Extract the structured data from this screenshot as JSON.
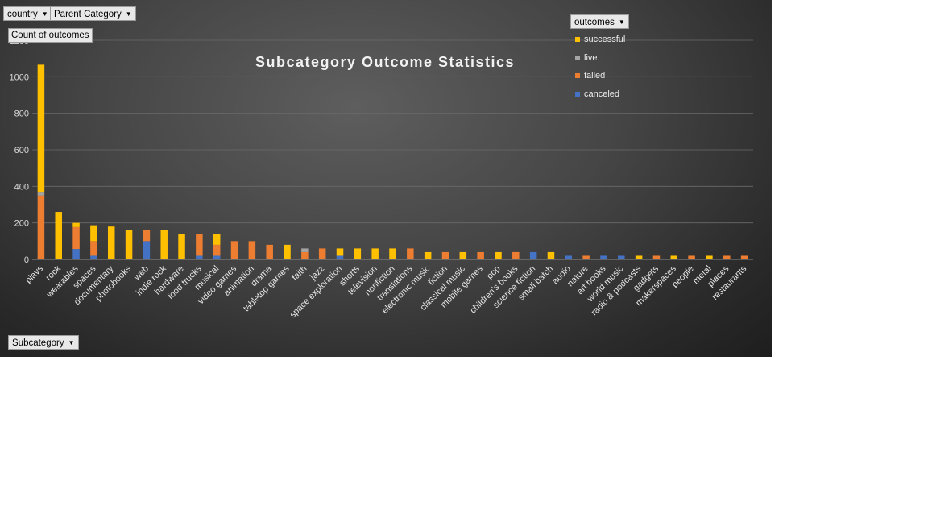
{
  "filters": {
    "country": "country",
    "parent_category": "Parent Category",
    "value_field": "Count of outcomes",
    "outcomes": "outcomes",
    "subcategory": "Subcategory"
  },
  "colors": {
    "successful": "#ffc000",
    "live": "#a5a5a5",
    "failed": "#ed7d31",
    "canceled": "#4472c4"
  },
  "chart_data": {
    "type": "bar",
    "stacked": true,
    "title": "Subcategory Outcome Statistics",
    "xlabel": "",
    "ylabel": "",
    "ylim": [
      0,
      1200
    ],
    "yticks": [
      0,
      200,
      400,
      600,
      800,
      1000,
      1200
    ],
    "grid": true,
    "legend_position": "top-right",
    "categories": [
      "plays",
      "rock",
      "wearables",
      "spaces",
      "documentary",
      "photobooks",
      "web",
      "indie rock",
      "hardware",
      "food trucks",
      "musical",
      "video games",
      "animation",
      "drama",
      "tabletop games",
      "faith",
      "jazz",
      "space exploration",
      "shorts",
      "television",
      "nonfiction",
      "translations",
      "electronic music",
      "fiction",
      "classical music",
      "mobile games",
      "pop",
      "children's books",
      "science fiction",
      "small batch",
      "audio",
      "nature",
      "art books",
      "world music",
      "radio & podcasts",
      "gadgets",
      "makerspaces",
      "people",
      "metal",
      "places",
      "restaurants"
    ],
    "series": [
      {
        "name": "canceled",
        "values": [
          0,
          0,
          57,
          20,
          0,
          0,
          100,
          0,
          0,
          20,
          20,
          0,
          0,
          0,
          0,
          0,
          0,
          20,
          0,
          0,
          0,
          0,
          0,
          0,
          0,
          0,
          0,
          0,
          40,
          0,
          20,
          0,
          20,
          20,
          0,
          0,
          0,
          0,
          0,
          0,
          0
        ]
      },
      {
        "name": "failed",
        "values": [
          350,
          0,
          120,
          80,
          0,
          0,
          60,
          0,
          0,
          120,
          60,
          100,
          100,
          80,
          0,
          40,
          60,
          0,
          0,
          0,
          0,
          60,
          0,
          40,
          0,
          40,
          0,
          40,
          0,
          0,
          0,
          20,
          0,
          0,
          0,
          20,
          0,
          20,
          0,
          20,
          20
        ]
      },
      {
        "name": "live",
        "values": [
          20,
          0,
          0,
          0,
          0,
          0,
          0,
          0,
          0,
          0,
          0,
          0,
          0,
          0,
          0,
          20,
          0,
          0,
          0,
          0,
          0,
          0,
          0,
          0,
          0,
          0,
          0,
          0,
          0,
          0,
          0,
          0,
          0,
          0,
          0,
          0,
          0,
          0,
          0,
          0,
          0
        ]
      },
      {
        "name": "successful",
        "values": [
          696,
          260,
          23,
          87,
          180,
          160,
          0,
          160,
          140,
          0,
          60,
          0,
          0,
          0,
          80,
          0,
          0,
          40,
          60,
          60,
          60,
          0,
          40,
          0,
          40,
          0,
          40,
          0,
          0,
          40,
          0,
          0,
          0,
          0,
          20,
          0,
          20,
          0,
          20,
          0,
          0
        ]
      }
    ]
  }
}
